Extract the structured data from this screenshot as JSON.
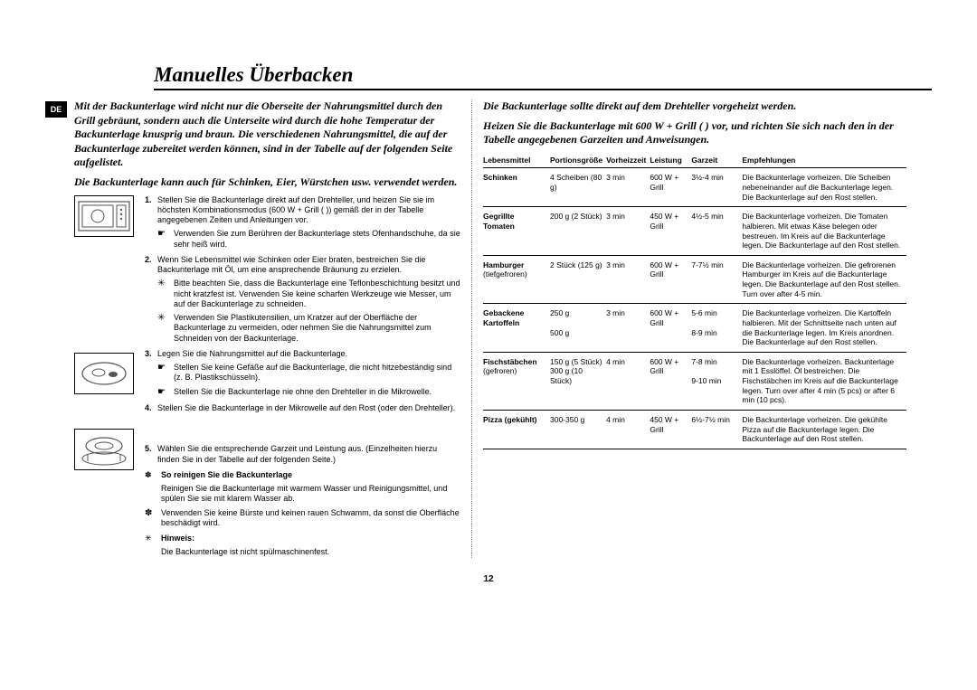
{
  "language_tag": "DE",
  "title": "Manuelles Überbacken",
  "left": {
    "intro1": "Mit der Backunterlage wird nicht nur die Oberseite der Nahrungsmittel durch den Grill gebräunt, sondern auch die Unterseite wird durch die hohe Temperatur der Backunterlage knusprig und braun. Die verschiedenen Nahrungsmittel, die auf der Backunterlage zubereitet werden können, sind in der Tabelle auf der folgenden Seite aufgelistet.",
    "intro2": "Die Backunterlage kann auch für Schinken, Eier, Würstchen usw. verwendet werden.",
    "steps": [
      {
        "n": "1.",
        "body": "Stellen Sie die Backunterlage direkt auf den Drehteller, und heizen Sie sie im höchsten Kombinationsmodus (600 W + Grill ( )) gemäß der in der Tabelle angegebenen Zeiten und Anleitungen vor.",
        "bullets": [
          {
            "sym": "☛",
            "txt": "Verwenden Sie zum Berühren der Backunterlage stets Ofenhandschuhe, da sie sehr heiß wird."
          }
        ]
      },
      {
        "n": "2.",
        "body": "Wenn Sie Lebensmittel wie Schinken oder Eier braten, bestreichen Sie die Backunterlage mit Öl, um eine ansprechende Bräunung zu erzielen.",
        "bullets": [
          {
            "sym": "✳",
            "txt": "Bitte beachten Sie, dass die Backunterlage eine Teflonbeschichtung besitzt und nicht kratzfest ist. Verwenden Sie keine scharfen Werkzeuge wie Messer, um auf der Backunterlage zu schneiden."
          },
          {
            "sym": "✳",
            "txt": "Verwenden Sie Plastikutensilien, um Kratzer auf der Oberfläche der Backunterlage zu vermeiden, oder nehmen Sie die Nahrungsmittel zum Schneiden von der Backunterlage."
          }
        ]
      },
      {
        "n": "3.",
        "body": "Legen Sie die Nahrungsmittel auf die Backunterlage.",
        "bullets": [
          {
            "sym": "☛",
            "txt": "Stellen Sie keine Gefäße auf die Backunterlage, die nicht hitzebeständig sind (z. B. Plastikschüsseln)."
          },
          {
            "sym": "☛",
            "txt": "Stellen Sie die Backunterlage nie ohne den Drehteller in die Mikrowelle."
          }
        ]
      },
      {
        "n": "4.",
        "body": "Stellen Sie die Backunterlage in der Mikrowelle auf den Rost (oder den Drehteller).",
        "bullets": []
      },
      {
        "n": "5.",
        "body": "Wählen Sie die entsprechende Garzeit und Leistung aus. (Einzelheiten hierzu finden Sie in der Tabelle auf der folgenden Seite.)",
        "bullets": []
      }
    ],
    "clean_head": "So reinigen Sie die Backunterlage",
    "clean1": "Reinigen Sie die Backunterlage mit warmem Wasser und Reinigungsmittel, und spülen Sie sie mit klarem Wasser ab.",
    "clean2": "Verwenden Sie keine Bürste und keinen rauen Schwamm, da sonst die Oberfläche beschädigt wird.",
    "note_head": "Hinweis:",
    "note": "Die Backunterlage ist nicht spülmaschinenfest."
  },
  "right": {
    "intro1": "Die Backunterlage sollte direkt auf dem Drehteller vorgeheizt werden.",
    "intro2": "Heizen Sie die Backunterlage mit 600 W + Grill ( ) vor, und richten Sie sich nach den in der Tabelle angegebenen Garzeiten und Anweisungen.",
    "headers": {
      "c1": "Lebensmittel",
      "c2": "Portionsgröße",
      "c3": "Vorheizzeit",
      "c4": "Leistung",
      "c5": "Garzeit",
      "c6": "Empfehlungen"
    },
    "rows": [
      {
        "c1": "Schinken",
        "c1b": "",
        "c2": "4 Scheiben (80 g)",
        "c3": "3 min",
        "c4": "600 W + Grill",
        "c5": "3½-4 min",
        "c6": "Die Backunterlage vorheizen. Die Scheiben nebeneinander auf die Backunterlage legen. Die Backunterlage auf den Rost stellen."
      },
      {
        "c1": "Gegrillte Tomaten",
        "c1b": "",
        "c2": "200 g (2 Stück)",
        "c3": "3 min",
        "c4": "450 W + Grill",
        "c5": "4½-5 min",
        "c6": "Die Backunterlage vorheizen. Die Tomaten halbieren. Mit etwas Käse belegen oder bestreuen. Im Kreis auf die Backunterlage legen. Die Backunterlage auf den Rost stellen."
      },
      {
        "c1": "Hamburger",
        "c1b": "(tiefgefroren)",
        "c2": "2 Stück (125 g)",
        "c3": "3 min",
        "c4": "600 W + Grill",
        "c5": "7-7½ min",
        "c6": "Die Backunterlage vorheizen. Die gefrorenen Hamburger im Kreis auf die Backunterlage legen. Die Backunterlage auf den Rost stellen. Turn over after 4-5 min."
      },
      {
        "c1": "Gebackene Kartoffeln",
        "c1b": "",
        "c2": "250 g\n\n500 g",
        "c3": "3 min",
        "c4": "600 W + Grill",
        "c5": "5-6 min\n\n8-9 min",
        "c6": "Die Backunterlage vorheizen. Die Kartoffeln halbieren. Mit der Schnittseite nach unten auf die Backunterlage legen. Im Kreis anordnen. Die Backunterlage auf den Rost stellen."
      },
      {
        "c1": "Fischstäbchen",
        "c1b": "(gefroren)",
        "c2": "150 g (5 Stück)\n300 g (10 Stück)",
        "c3": "4 min",
        "c4": "600 W + Grill",
        "c5": "7-8 min\n\n9-10 min",
        "c6": "Die Backunterlage vorheizen. Backunterlage mit 1 Esslöffel. Öl bestreichen. Die Fischstäbchen im Kreis auf die Backunterlage legen. Turn over after 4 min (5 pcs) or after 6 min (10 pcs)."
      },
      {
        "c1": "Pizza (gekühlt)",
        "c1b": "",
        "c2": "300-350 g",
        "c3": "4 min",
        "c4": "450 W + Grill",
        "c5": "6½-7½ min",
        "c6": "Die Backunterlage vorheizen. Die gekühlte Pizza auf die Backunterlage legen. Die Backunterlage auf den Rost stellen."
      }
    ]
  },
  "page_number": "12"
}
